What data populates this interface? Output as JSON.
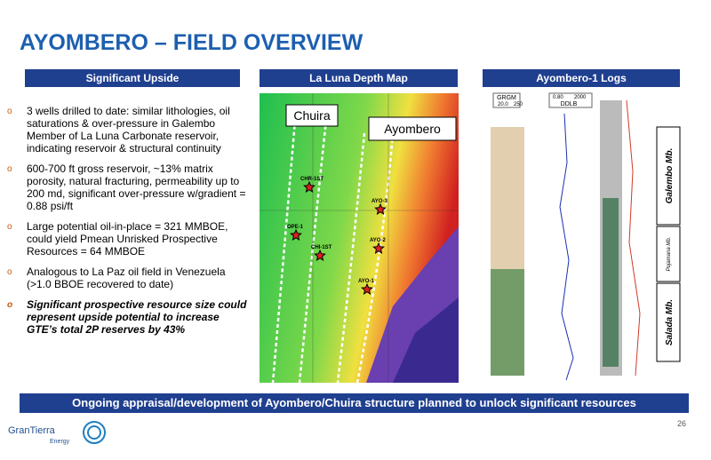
{
  "header": {
    "title": "AYOMBERO – FIELD OVERVIEW"
  },
  "panels": [
    {
      "heading": "Significant Upside"
    },
    {
      "heading": "La Luna Depth Map"
    },
    {
      "heading": "Ayombero-1 Logs"
    }
  ],
  "bullets": [
    "3 wells drilled to date: similar lithologies, oil saturations & over-pressure in Galembo Member of La Luna Carbonate reservoir, indicating reservoir & structural continuity",
    "600-700 ft gross reservoir, ~13% matrix porosity, natural fracturing, permeability up to 200 md, significant over-pressure w/gradient = 0.88 psi/ft",
    "Large potential oil-in-place = 321 MMBOE, could yield Pmean Unrisked Prospective Resources = 64 MMBOE",
    "Analogous to La Paz oil field in Venezuela (>1.0 BBOE recovered to date)",
    "Significant prospective resource size could represent upside potential to increase GTE’s total 2P reserves by 43%"
  ],
  "map": {
    "labels": [
      "Chuira",
      "Ayombero"
    ],
    "wells": [
      "CHR-1ST",
      "OPE-1",
      "CHI-1ST",
      "AYO-3",
      "AYO-2",
      "AYO-1"
    ]
  },
  "logs": {
    "track_labels": [
      "GRGM",
      "20.0",
      "250",
      "0.80",
      "2000",
      "DDLB"
    ],
    "members": [
      "Galembo Mb.",
      "Pujamana Mb.",
      "Salada Mb."
    ]
  },
  "banner": "Ongoing appraisal/development of Ayombero/Chuira structure planned to unlock significant resources",
  "footer": {
    "page_number": "26",
    "logo": [
      "GranTierra",
      "Energy"
    ]
  }
}
